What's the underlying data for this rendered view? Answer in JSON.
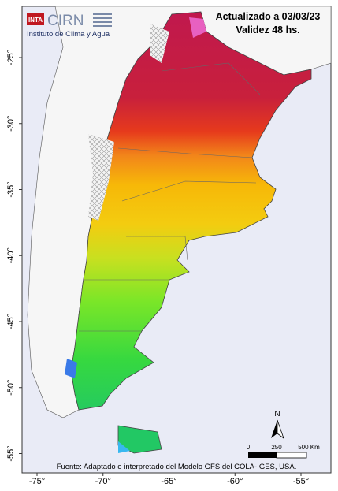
{
  "logo": {
    "inta": "INTA",
    "cirn": "CIRN",
    "subtitle": "Instituto de Clima y Agua"
  },
  "header": {
    "updated": "Actualizado a 03/03/23",
    "validity": "Validez 48 hs."
  },
  "map": {
    "lat_ticks": [
      {
        "value": -25,
        "label": "-25°"
      },
      {
        "value": -30,
        "label": "-30°"
      },
      {
        "value": -35,
        "label": "-35°"
      },
      {
        "value": -40,
        "label": "-40°"
      },
      {
        "value": -45,
        "label": "-45°"
      },
      {
        "value": -50,
        "label": "-50°"
      },
      {
        "value": -55,
        "label": "-55°"
      }
    ],
    "lon_ticks": [
      {
        "value": -75,
        "label": "-75°"
      },
      {
        "value": -70,
        "label": "-70°"
      },
      {
        "value": -65,
        "label": "-65°"
      },
      {
        "value": -60,
        "label": "-60°"
      },
      {
        "value": -55,
        "label": "-55°"
      }
    ],
    "north": "N",
    "scale_labels": [
      "0",
      "250",
      "500 Km"
    ]
  },
  "footer": "Fuente: Adaptado e interpretado del Modelo GFS del COLA-IGES, USA."
}
